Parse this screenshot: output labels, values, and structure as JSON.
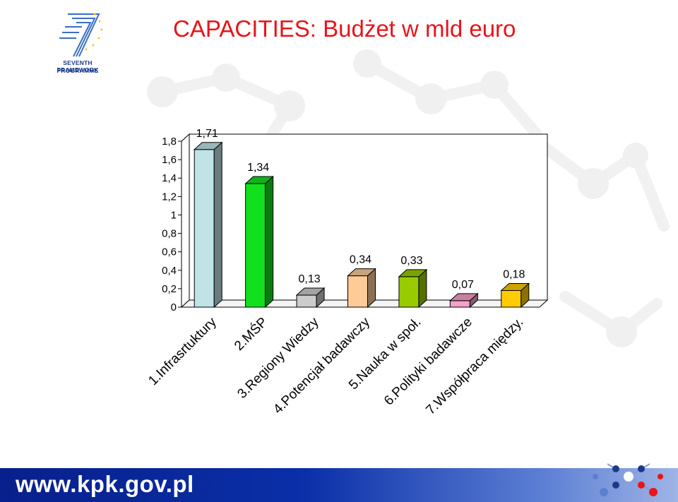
{
  "page": {
    "title": "CAPACITIES: Budżet w mld euro",
    "logo_text_line1": "SEVENTH FRAMEWORK",
    "logo_text_line2": "PROGRAMME",
    "footer_url": "www.kpk.gov.pl"
  },
  "colors": {
    "title": "#e8141a",
    "footer_band": "#0a2fa8",
    "logo_blue": "#1b3a8a"
  },
  "icons": [
    "seventh-framework-logo",
    "kpk-molecule-logo"
  ],
  "chart_data": {
    "type": "bar",
    "title": "",
    "xlabel": "",
    "ylabel": "",
    "ylim": [
      0,
      1.8
    ],
    "yticks": [
      "0",
      "0,2",
      "0,4",
      "0,6",
      "0,8",
      "1",
      "1,2",
      "1,4",
      "1,6",
      "1,8"
    ],
    "grid": false,
    "style": "3d",
    "categories": [
      "1.Infrasrtuktury",
      "2.MŚP",
      "3.Regiony Wiedzy",
      "4.Potencjał badawczy",
      "5.Nauka w społ.",
      "6.Polityki badawcze",
      "7.Współpraca między."
    ],
    "values": [
      1.71,
      1.34,
      0.13,
      0.34,
      0.33,
      0.07,
      0.18
    ],
    "data_labels": [
      "1,71",
      "1,34",
      "0,13",
      "0,34",
      "0,33",
      "0,07",
      "0,18"
    ],
    "bar_colors": [
      "#bfe3e6",
      "#12e01e",
      "#cccccc",
      "#fccb98",
      "#99cc00",
      "#f7a1c9",
      "#ffcc00"
    ]
  }
}
